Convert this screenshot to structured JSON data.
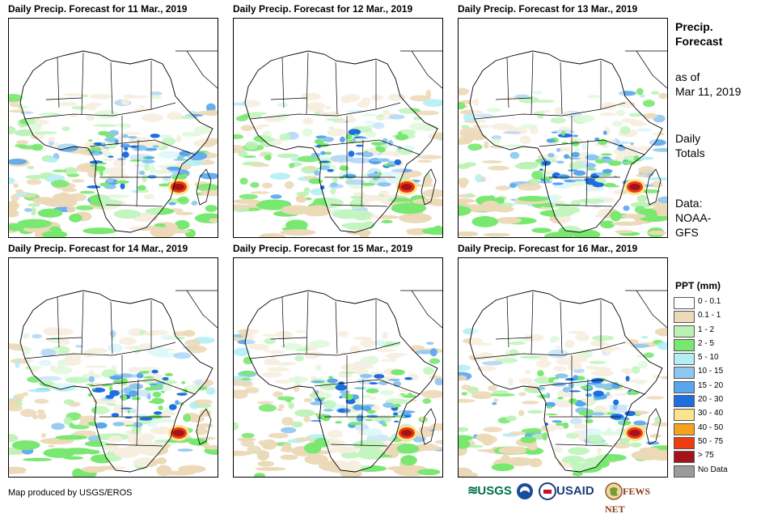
{
  "panels": [
    {
      "title": "Daily Precip. Forecast for 11 Mar., 2019"
    },
    {
      "title": "Daily Precip. Forecast for 12 Mar., 2019"
    },
    {
      "title": "Daily Precip. Forecast for 13 Mar., 2019"
    },
    {
      "title": "Daily Precip. Forecast for 14 Mar., 2019"
    },
    {
      "title": "Daily Precip. Forecast for 15 Mar., 2019"
    },
    {
      "title": "Daily Precip. Forecast for 16 Mar., 2019"
    }
  ],
  "side": {
    "heading_line1": "Precip.",
    "heading_line2": "Forecast",
    "asof_line1": "as of",
    "asof_line2": "Mar 11, 2019",
    "daily_line1": "Daily",
    "daily_line2": "Totals",
    "data_line1": "Data:",
    "data_line2": "NOAA-",
    "data_line3": "GFS"
  },
  "legend": {
    "title": "PPT (mm)",
    "items": [
      {
        "label": "0 - 0.1",
        "color": "#ffffff"
      },
      {
        "label": "0.1 - 1",
        "color": "#ecd9b8"
      },
      {
        "label": "1 - 2",
        "color": "#b9f2b2"
      },
      {
        "label": "2 - 5",
        "color": "#79e871"
      },
      {
        "label": "5 - 10",
        "color": "#b4eef4"
      },
      {
        "label": "10 - 15",
        "color": "#8dc6ee"
      },
      {
        "label": "15 - 20",
        "color": "#58a6ee"
      },
      {
        "label": "20 - 30",
        "color": "#1f6ee0"
      },
      {
        "label": "30 - 40",
        "color": "#fbe48d"
      },
      {
        "label": "40 - 50",
        "color": "#f5a31e"
      },
      {
        "label": "50 - 75",
        "color": "#ef3b10"
      },
      {
        "label": "> 75",
        "color": "#a2141a"
      },
      {
        "label": "No Data",
        "color": "#9b9b9b"
      }
    ]
  },
  "credit": "Map produced by USGS/EROS",
  "logos": {
    "usgs": "USGS",
    "usaid": "USAID",
    "fewsnet": "FEWS NET"
  }
}
